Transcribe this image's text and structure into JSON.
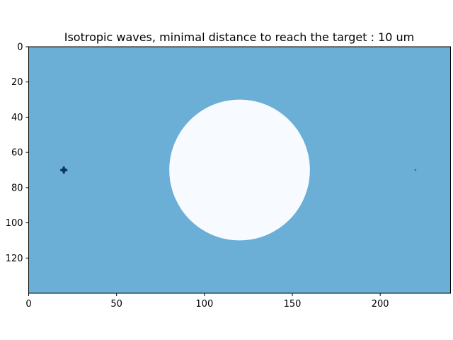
{
  "chart_data": {
    "type": "heatmap",
    "title": "Isotropic waves, minimal distance to reach the target : 10 um",
    "xlabel": "",
    "ylabel": "",
    "xlim": [
      0,
      240
    ],
    "ylim": [
      140,
      0
    ],
    "y_inverted": true,
    "grid": false,
    "x_ticks": [
      0,
      50,
      100,
      150,
      200
    ],
    "y_ticks": [
      0,
      20,
      40,
      60,
      80,
      100,
      120
    ],
    "x_tick_labels": [
      "0",
      "50",
      "100",
      "150",
      "200"
    ],
    "y_tick_labels": [
      "0",
      "20",
      "40",
      "60",
      "80",
      "100",
      "120"
    ],
    "colormap": "Blues",
    "colors": {
      "background_field": "#6baed6",
      "obstacle_disk": "#f7fbff",
      "source_marker": "#08306b",
      "target_marker": "#2171b5"
    },
    "regions": [
      {
        "name": "medium",
        "shape": "rectangle",
        "x_range": [
          0,
          240
        ],
        "y_range": [
          0,
          140
        ],
        "color_key": "background_field"
      },
      {
        "name": "obstacle",
        "shape": "disk",
        "center": [
          120,
          70
        ],
        "radius": 40,
        "color_key": "obstacle_disk"
      }
    ],
    "markers": [
      {
        "name": "source",
        "shape": "cross",
        "x": 20,
        "y": 70,
        "arm": 2,
        "color_key": "source_marker"
      },
      {
        "name": "target",
        "shape": "dot",
        "x": 220,
        "y": 70,
        "color_key": "target_marker"
      }
    ]
  }
}
